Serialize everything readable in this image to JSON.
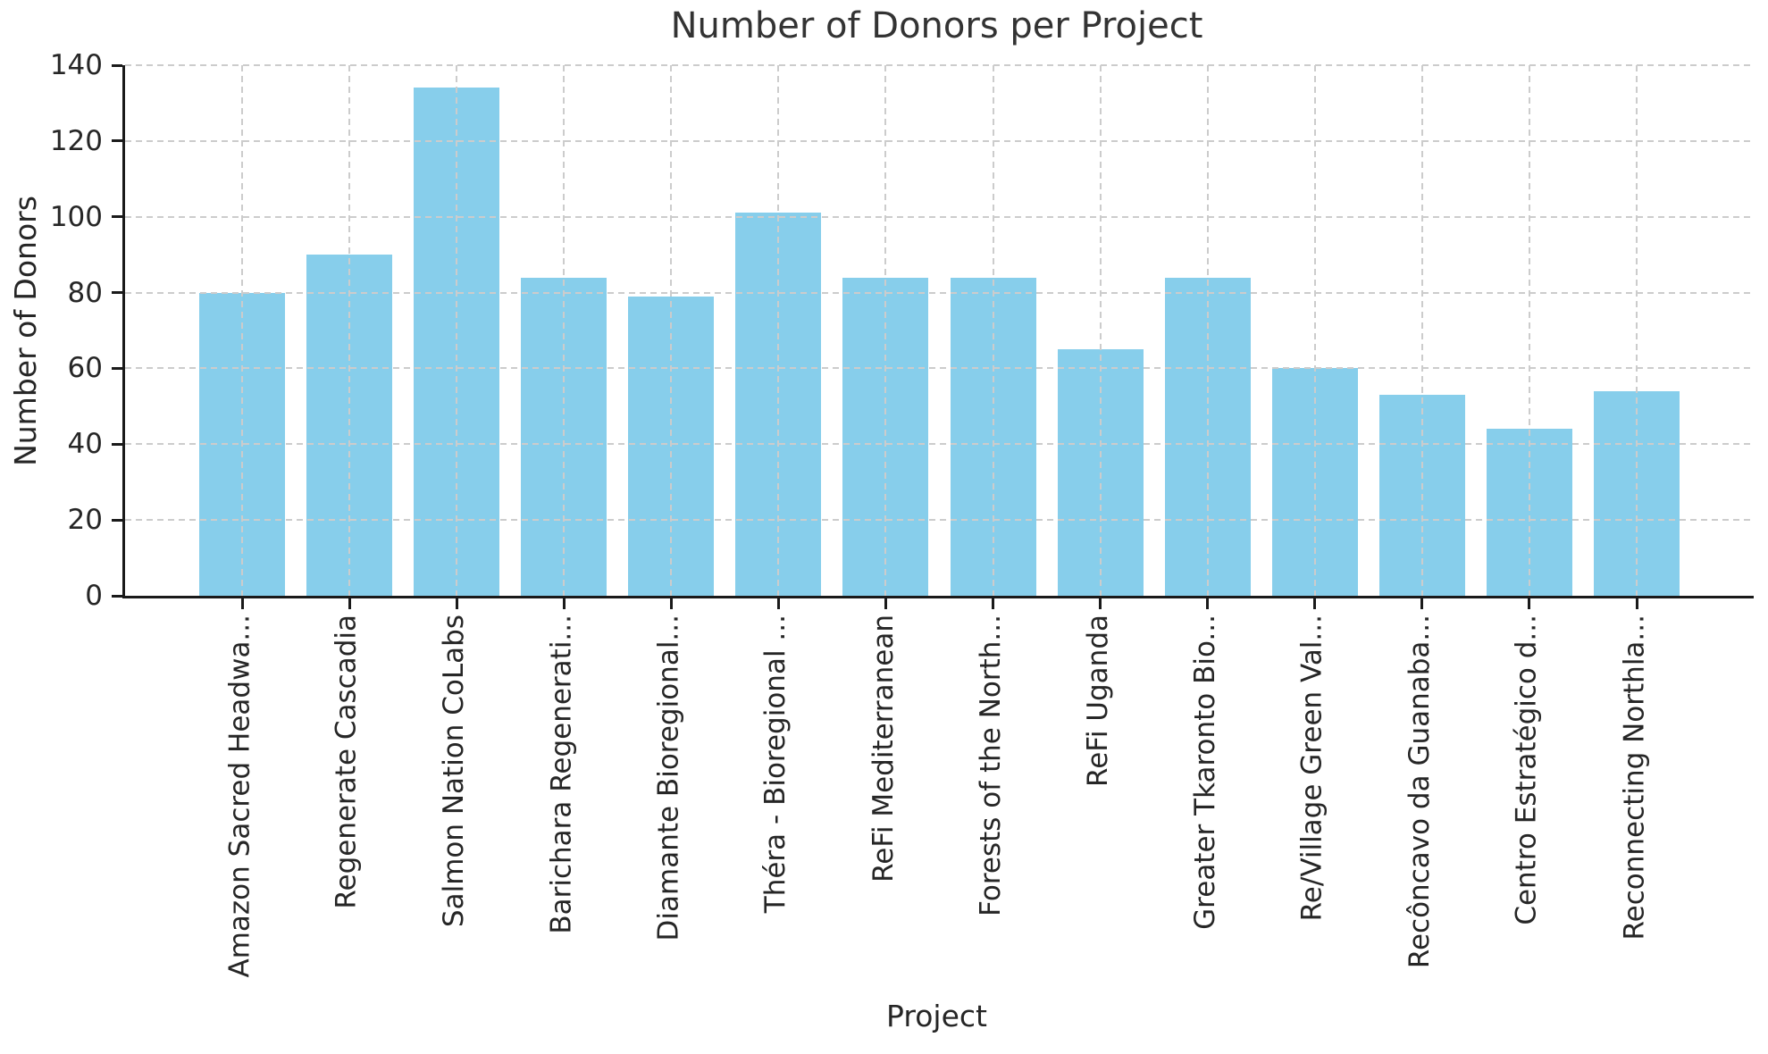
{
  "chart_data": {
    "type": "bar",
    "title": "Number of Donors per Project",
    "xlabel": "Project",
    "ylabel": "Number of Donors",
    "categories": [
      "Amazon Sacred Headwa...",
      "Regenerate Cascadia",
      "Salmon Nation CoLabs",
      "Barichara Regenerati...",
      "Diamante Bioregional...",
      "Théra - Bioregional ...",
      "ReFi Mediterranean",
      "Forests of the North...",
      "ReFi Uganda",
      "Greater Tkaronto Bio...",
      "Re/Village Green Val...",
      "Recôncavo da Guanaba...",
      "Centro Estratégico d...",
      "Reconnecting Northla..."
    ],
    "values": [
      80,
      90,
      134,
      84,
      79,
      101,
      84,
      84,
      65,
      84,
      60,
      53,
      44,
      54
    ],
    "ylim": [
      0,
      140
    ],
    "yticks": [
      0,
      20,
      40,
      60,
      80,
      100,
      120,
      140
    ],
    "x_tick_rotation": 90,
    "grid": "dashed both axes, drawn above bars",
    "legend": "none",
    "colors": {
      "bar": "#87CEEB",
      "gridline": "#cccccc",
      "spine": "#1a1a1a",
      "tick_text": "#262626",
      "title_text": "#333333",
      "background": "#ffffff"
    }
  }
}
